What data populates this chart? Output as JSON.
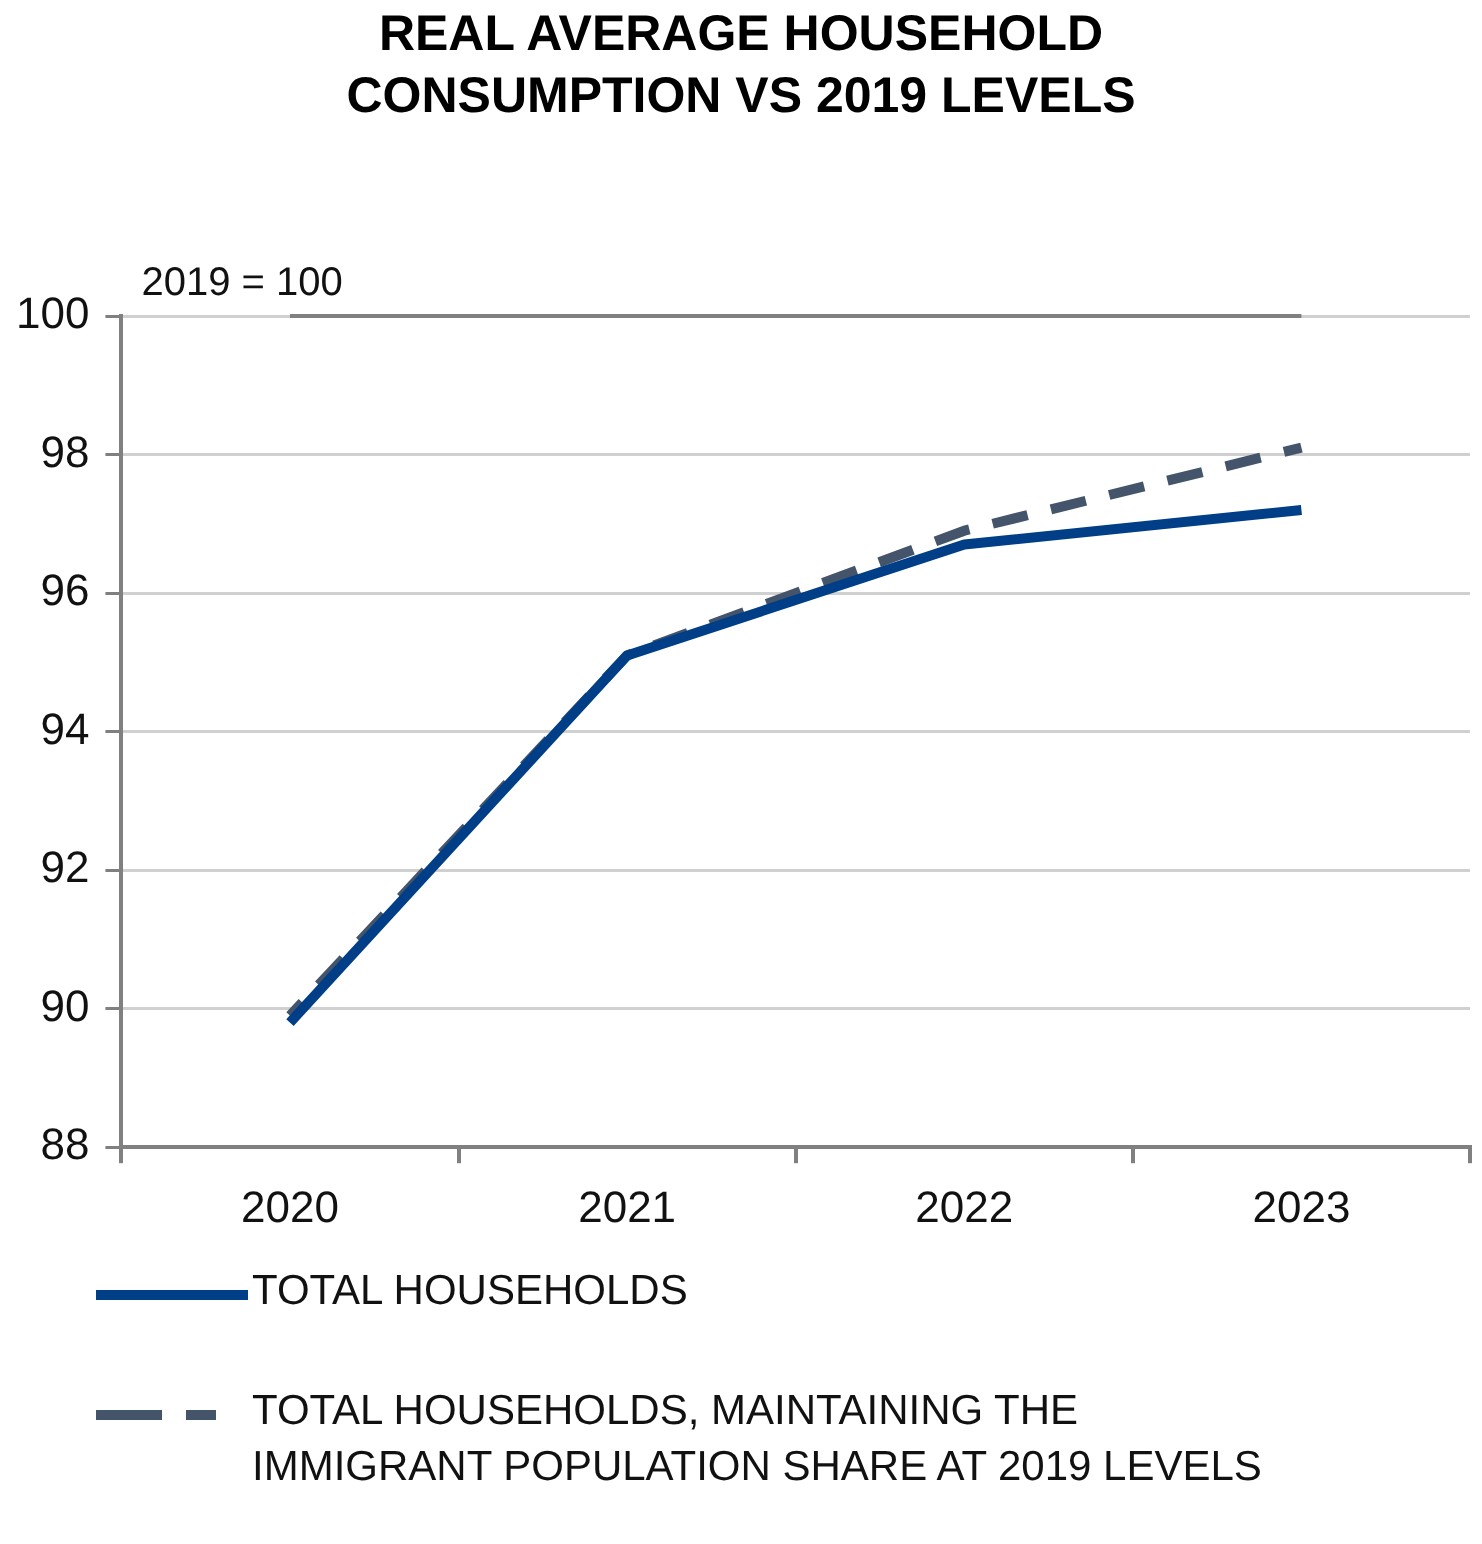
{
  "chart_data": {
    "type": "line",
    "title": "REAL AVERAGE HOUSEHOLD CONSUMPTION VS 2019 LEVELS",
    "categories": [
      "2020",
      "2021",
      "2022",
      "2023"
    ],
    "series": [
      {
        "name": "TOTAL HOUSEHOLDS",
        "color": "#003f87",
        "values": [
          89.8,
          95.1,
          96.7,
          97.2
        ],
        "line_style": "solid"
      },
      {
        "name": "TOTAL HOUSEHOLDS, MAINTAINING THE IMMIGRANT POPULATION SHARE AT 2019 LEVELS",
        "color": "#44546a",
        "values": [
          89.9,
          95.1,
          96.9,
          98.1
        ],
        "line_style": "dashed"
      }
    ],
    "ylim": [
      88,
      100
    ],
    "yticks": [
      88,
      90,
      92,
      94,
      96,
      98,
      100
    ],
    "grid": "y",
    "legend": "bottom",
    "marker": "none",
    "ref_lines": [
      {
        "axis": "y",
        "value": 100,
        "label": "2019 = 100",
        "color": "#808080"
      }
    ]
  }
}
